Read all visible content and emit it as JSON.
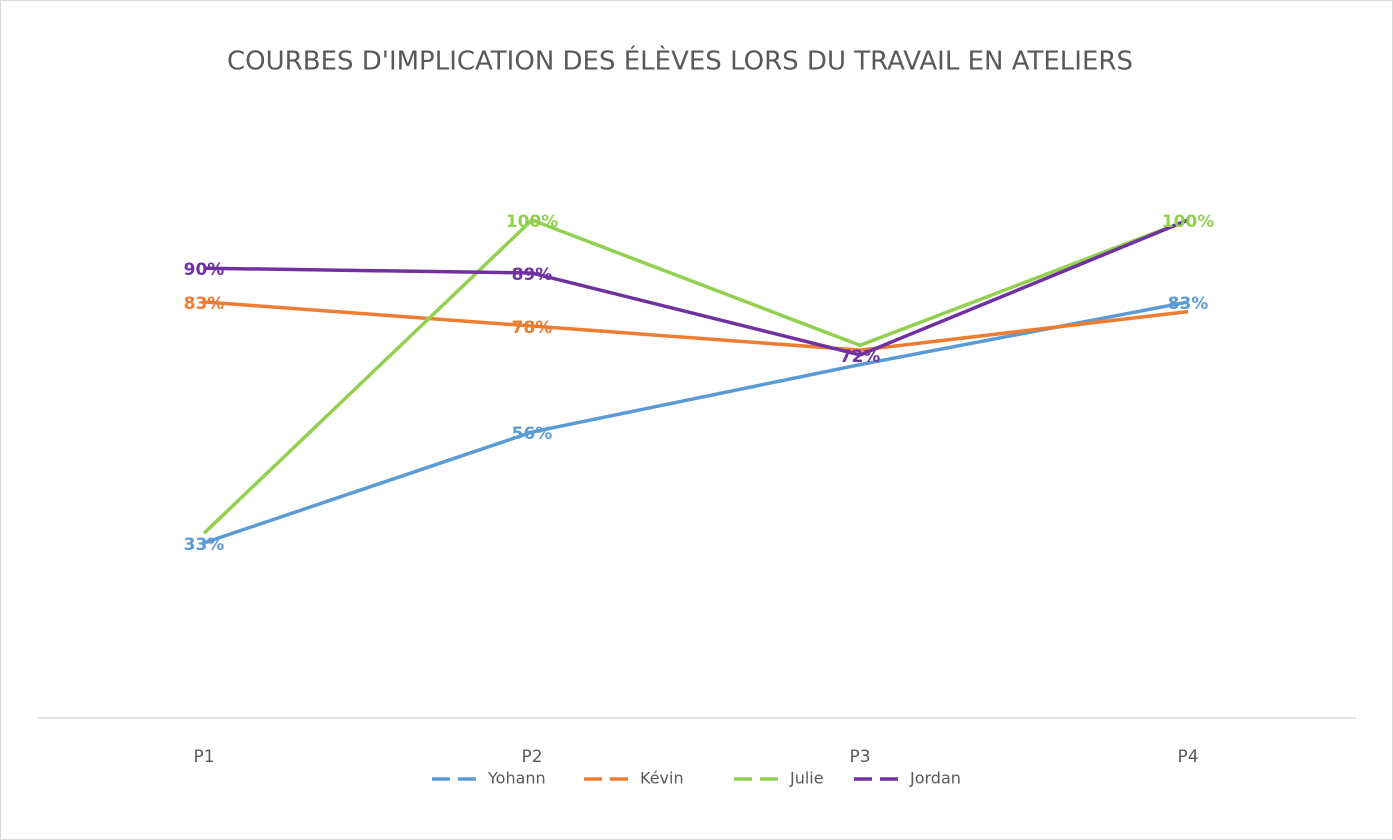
{
  "chart_data": {
    "type": "line",
    "title": "COURBES D'IMPLICATION DES ÉLÈVES LORS DU TRAVAIL EN ATELIERS",
    "categories": [
      "P1",
      "P2",
      "P3",
      "P4"
    ],
    "ylim": [
      0,
      100
    ],
    "series": [
      {
        "name": "Yohann",
        "color": "#5b9bd5",
        "values": [
          33,
          56,
          70,
          83
        ],
        "value_labels": [
          "33%",
          "56%",
          null,
          "83%"
        ]
      },
      {
        "name": "Kévin",
        "color": "#ed7d31",
        "values": [
          83,
          78,
          73,
          81
        ],
        "value_labels": [
          "83%",
          "78%",
          null,
          null
        ]
      },
      {
        "name": "Julie",
        "color": "#92d050",
        "values": [
          35,
          100,
          74,
          100
        ],
        "value_labels": [
          null,
          "100%",
          null,
          "100%"
        ]
      },
      {
        "name": "Jordan",
        "color": "#7030a0",
        "values": [
          90,
          89,
          72,
          100
        ],
        "value_labels": [
          "90%",
          "89%",
          "72%",
          null
        ]
      }
    ]
  }
}
